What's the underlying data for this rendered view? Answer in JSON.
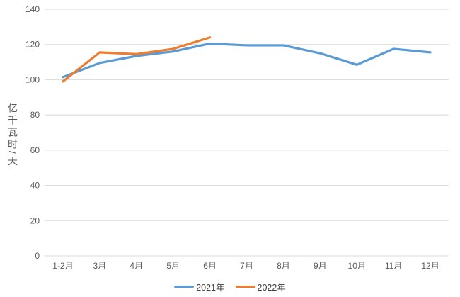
{
  "chart_data": {
    "type": "line",
    "categories": [
      "1-2月",
      "3月",
      "4月",
      "5月",
      "6月",
      "7月",
      "8月",
      "9月",
      "10月",
      "11月",
      "12月"
    ],
    "series": [
      {
        "name": "2021年",
        "color": "#5B9BD5",
        "values": [
          101.5,
          109.5,
          113.5,
          116,
          120.5,
          119.5,
          119.5,
          115,
          108.5,
          117.5,
          115.5
        ]
      },
      {
        "name": "2022年",
        "color": "#ED7D31",
        "values": [
          99,
          115.5,
          114.5,
          117.5,
          124
        ]
      }
    ],
    "title": "",
    "xlabel": "",
    "ylabel": "亿千瓦时/天",
    "ylim": [
      0,
      140
    ],
    "yticks": [
      0,
      20,
      40,
      60,
      80,
      100,
      120,
      140
    ],
    "grid": true,
    "legend_position": "bottom"
  },
  "colors": {
    "grid": "#D9D9D9",
    "axis_text": "#595959",
    "background": "#FFFFFF"
  }
}
